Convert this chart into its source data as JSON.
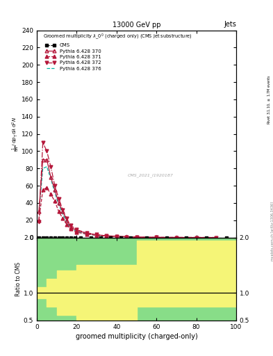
{
  "title_top": "13000 GeV pp",
  "title_right": "Jets",
  "plot_title": "Groomed multiplicity $\\lambda\\_0^0$ (charged only) (CMS jet substructure)",
  "xlabel": "groomed multiplicity (charged-only)",
  "ylabel_main": "1 / mathrm d N / mathrm d p_T mathrm d lambda mathrm d^2N",
  "ylabel_ratio": "Ratio to CMS",
  "watermark": "CMS_2021_I1920187",
  "ylim_main": [
    0,
    240
  ],
  "ylim_ratio": [
    0.5,
    2.0
  ],
  "xlim": [
    0,
    100
  ],
  "py370_x": [
    1,
    3,
    5,
    7,
    9,
    11,
    13,
    15,
    17,
    20,
    25,
    30,
    35,
    40,
    45,
    50,
    60,
    70,
    80,
    90
  ],
  "py370_y": [
    30,
    90,
    90,
    70,
    55,
    40,
    30,
    20,
    12,
    8,
    5,
    3,
    2,
    1.5,
    1,
    0.5,
    0.2,
    0.1,
    0.05,
    0.02
  ],
  "py371_x": [
    1,
    3,
    5,
    7,
    9,
    11,
    13,
    15,
    17,
    20,
    25,
    30,
    35,
    40,
    45,
    50,
    60,
    70,
    80,
    90
  ],
  "py371_y": [
    20,
    55,
    58,
    50,
    42,
    30,
    22,
    15,
    10,
    6,
    4,
    2.5,
    1.5,
    1,
    0.7,
    0.3,
    0.1,
    0.05,
    0.02,
    0.01
  ],
  "py372_x": [
    1,
    3,
    5,
    7,
    9,
    11,
    13,
    15,
    17,
    20,
    25,
    30,
    35,
    40,
    45,
    50,
    60,
    70,
    80,
    90
  ],
  "py372_y": [
    18,
    110,
    100,
    82,
    60,
    45,
    32,
    22,
    14,
    9,
    5.5,
    3.5,
    2,
    1.2,
    0.8,
    0.4,
    0.15,
    0.06,
    0.02,
    0.01
  ],
  "py376_x": [
    1,
    3,
    5,
    7,
    9,
    11,
    13,
    15,
    17,
    20,
    25,
    30,
    35,
    40,
    45,
    50,
    60,
    70,
    80,
    90
  ],
  "py376_y": [
    28,
    80,
    82,
    68,
    52,
    38,
    27,
    18,
    11,
    7,
    4,
    2.5,
    1.5,
    0.9,
    0.5,
    0.25,
    0.08,
    0.03,
    0.01,
    0.005
  ],
  "color_370": "#b5173a",
  "color_371": "#b5173a",
  "color_372": "#b5173a",
  "color_376": "#00b5a0",
  "yticks_main": [
    0,
    20,
    40,
    60,
    80,
    100,
    120,
    140,
    160,
    180,
    200,
    220,
    240
  ],
  "yticks_ratio": [
    0.5,
    1.0,
    2.0
  ],
  "ratio_edges": [
    0,
    5,
    10,
    20,
    30,
    40,
    50,
    100
  ],
  "ratio_green_lo": [
    0.5,
    0.5,
    0.5,
    0.5,
    0.5,
    0.5,
    0.5,
    0.5
  ],
  "ratio_green_hi": [
    2.0,
    2.0,
    2.0,
    2.0,
    2.0,
    2.0,
    2.0,
    2.0
  ],
  "ratio_yellow_lo": [
    0.9,
    0.75,
    0.6,
    0.5,
    0.5,
    0.5,
    0.75,
    0.75
  ],
  "ratio_yellow_hi": [
    1.1,
    1.25,
    1.4,
    1.5,
    1.5,
    1.5,
    1.95,
    1.95
  ]
}
